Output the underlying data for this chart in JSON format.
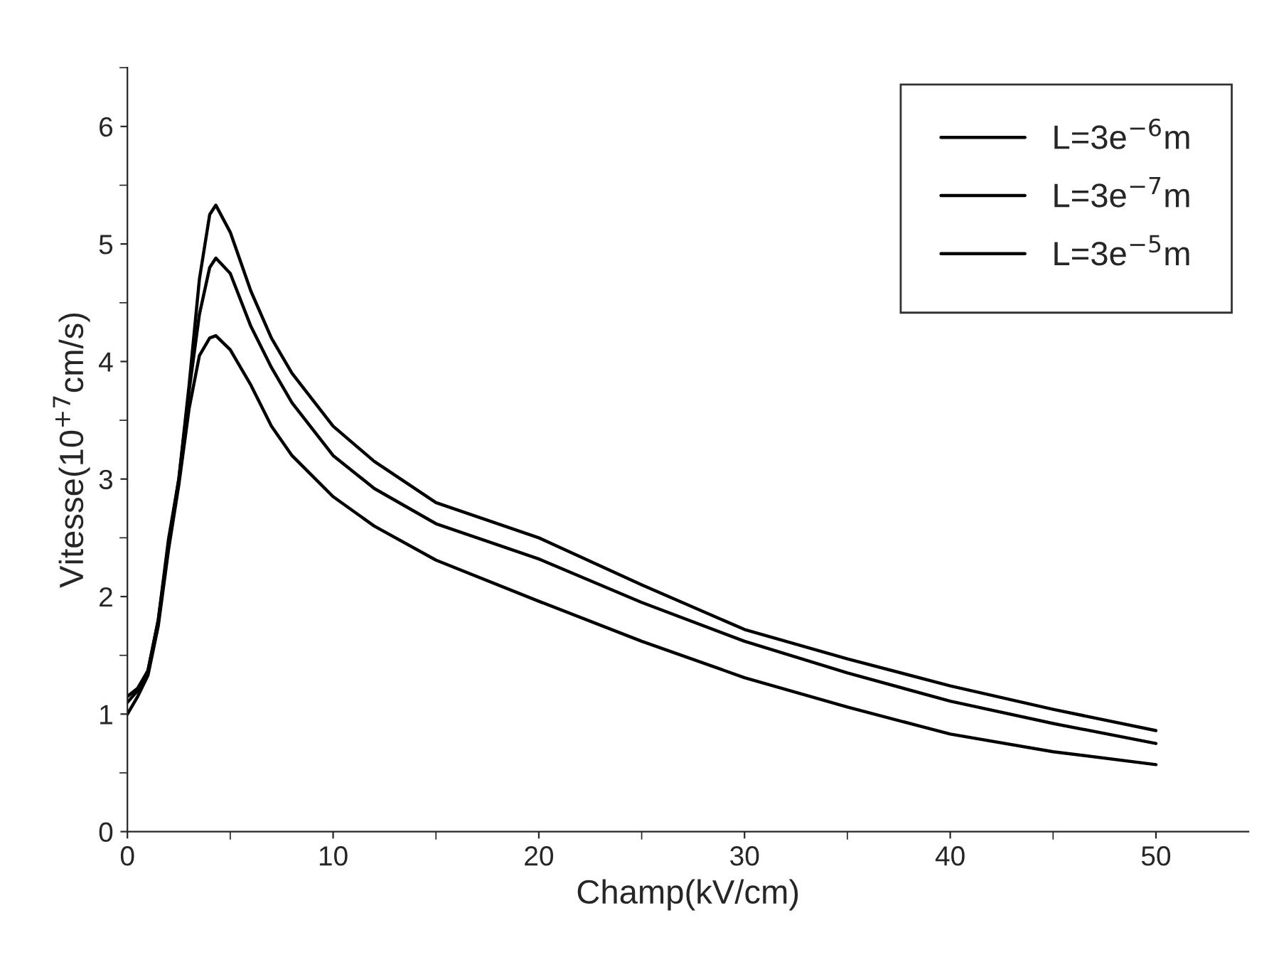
{
  "chart_data": {
    "type": "line",
    "xlabel": "Champ(kV/cm)",
    "ylabel": "Vitesse(10$^{+7}$cm/s)",
    "xlim": [
      0,
      54.5
    ],
    "ylim": [
      0,
      6.5
    ],
    "xticks": [
      0,
      10,
      20,
      30,
      40,
      50
    ],
    "yticks": [
      0,
      1,
      2,
      3,
      4,
      5,
      6
    ],
    "grid": false,
    "legend": "top right",
    "line_style": "solid",
    "marker": "none",
    "x": [
      0,
      0.5,
      1,
      1.5,
      2,
      2.5,
      3,
      3.5,
      4,
      4.3,
      5,
      6,
      7,
      8,
      10,
      12,
      15,
      20,
      25,
      30,
      35,
      40,
      45,
      50
    ],
    "series": [
      {
        "name": "L=3e$^{−6}$m",
        "color": "#000000",
        "values": [
          1.1,
          1.2,
          1.37,
          1.8,
          2.49,
          3.0,
          3.8,
          4.7,
          5.25,
          5.33,
          5.1,
          4.6,
          4.2,
          3.9,
          3.45,
          3.15,
          2.8,
          2.5,
          2.1,
          1.72,
          1.47,
          1.24,
          1.04,
          0.86
        ]
      },
      {
        "name": "L=3e$^{−7}$m",
        "color": "#000000",
        "values": [
          1.15,
          1.22,
          1.37,
          1.8,
          2.45,
          3.0,
          3.75,
          4.4,
          4.8,
          4.88,
          4.75,
          4.3,
          3.95,
          3.65,
          3.2,
          2.92,
          2.62,
          2.32,
          1.95,
          1.62,
          1.35,
          1.11,
          0.92,
          0.75
        ]
      },
      {
        "name": "L=3e$^{−5}$m",
        "color": "#000000",
        "values": [
          1.0,
          1.15,
          1.33,
          1.75,
          2.4,
          2.95,
          3.6,
          4.05,
          4.2,
          4.22,
          4.1,
          3.8,
          3.45,
          3.2,
          2.85,
          2.6,
          2.31,
          1.96,
          1.62,
          1.31,
          1.06,
          0.83,
          0.68,
          0.57
        ]
      }
    ]
  }
}
